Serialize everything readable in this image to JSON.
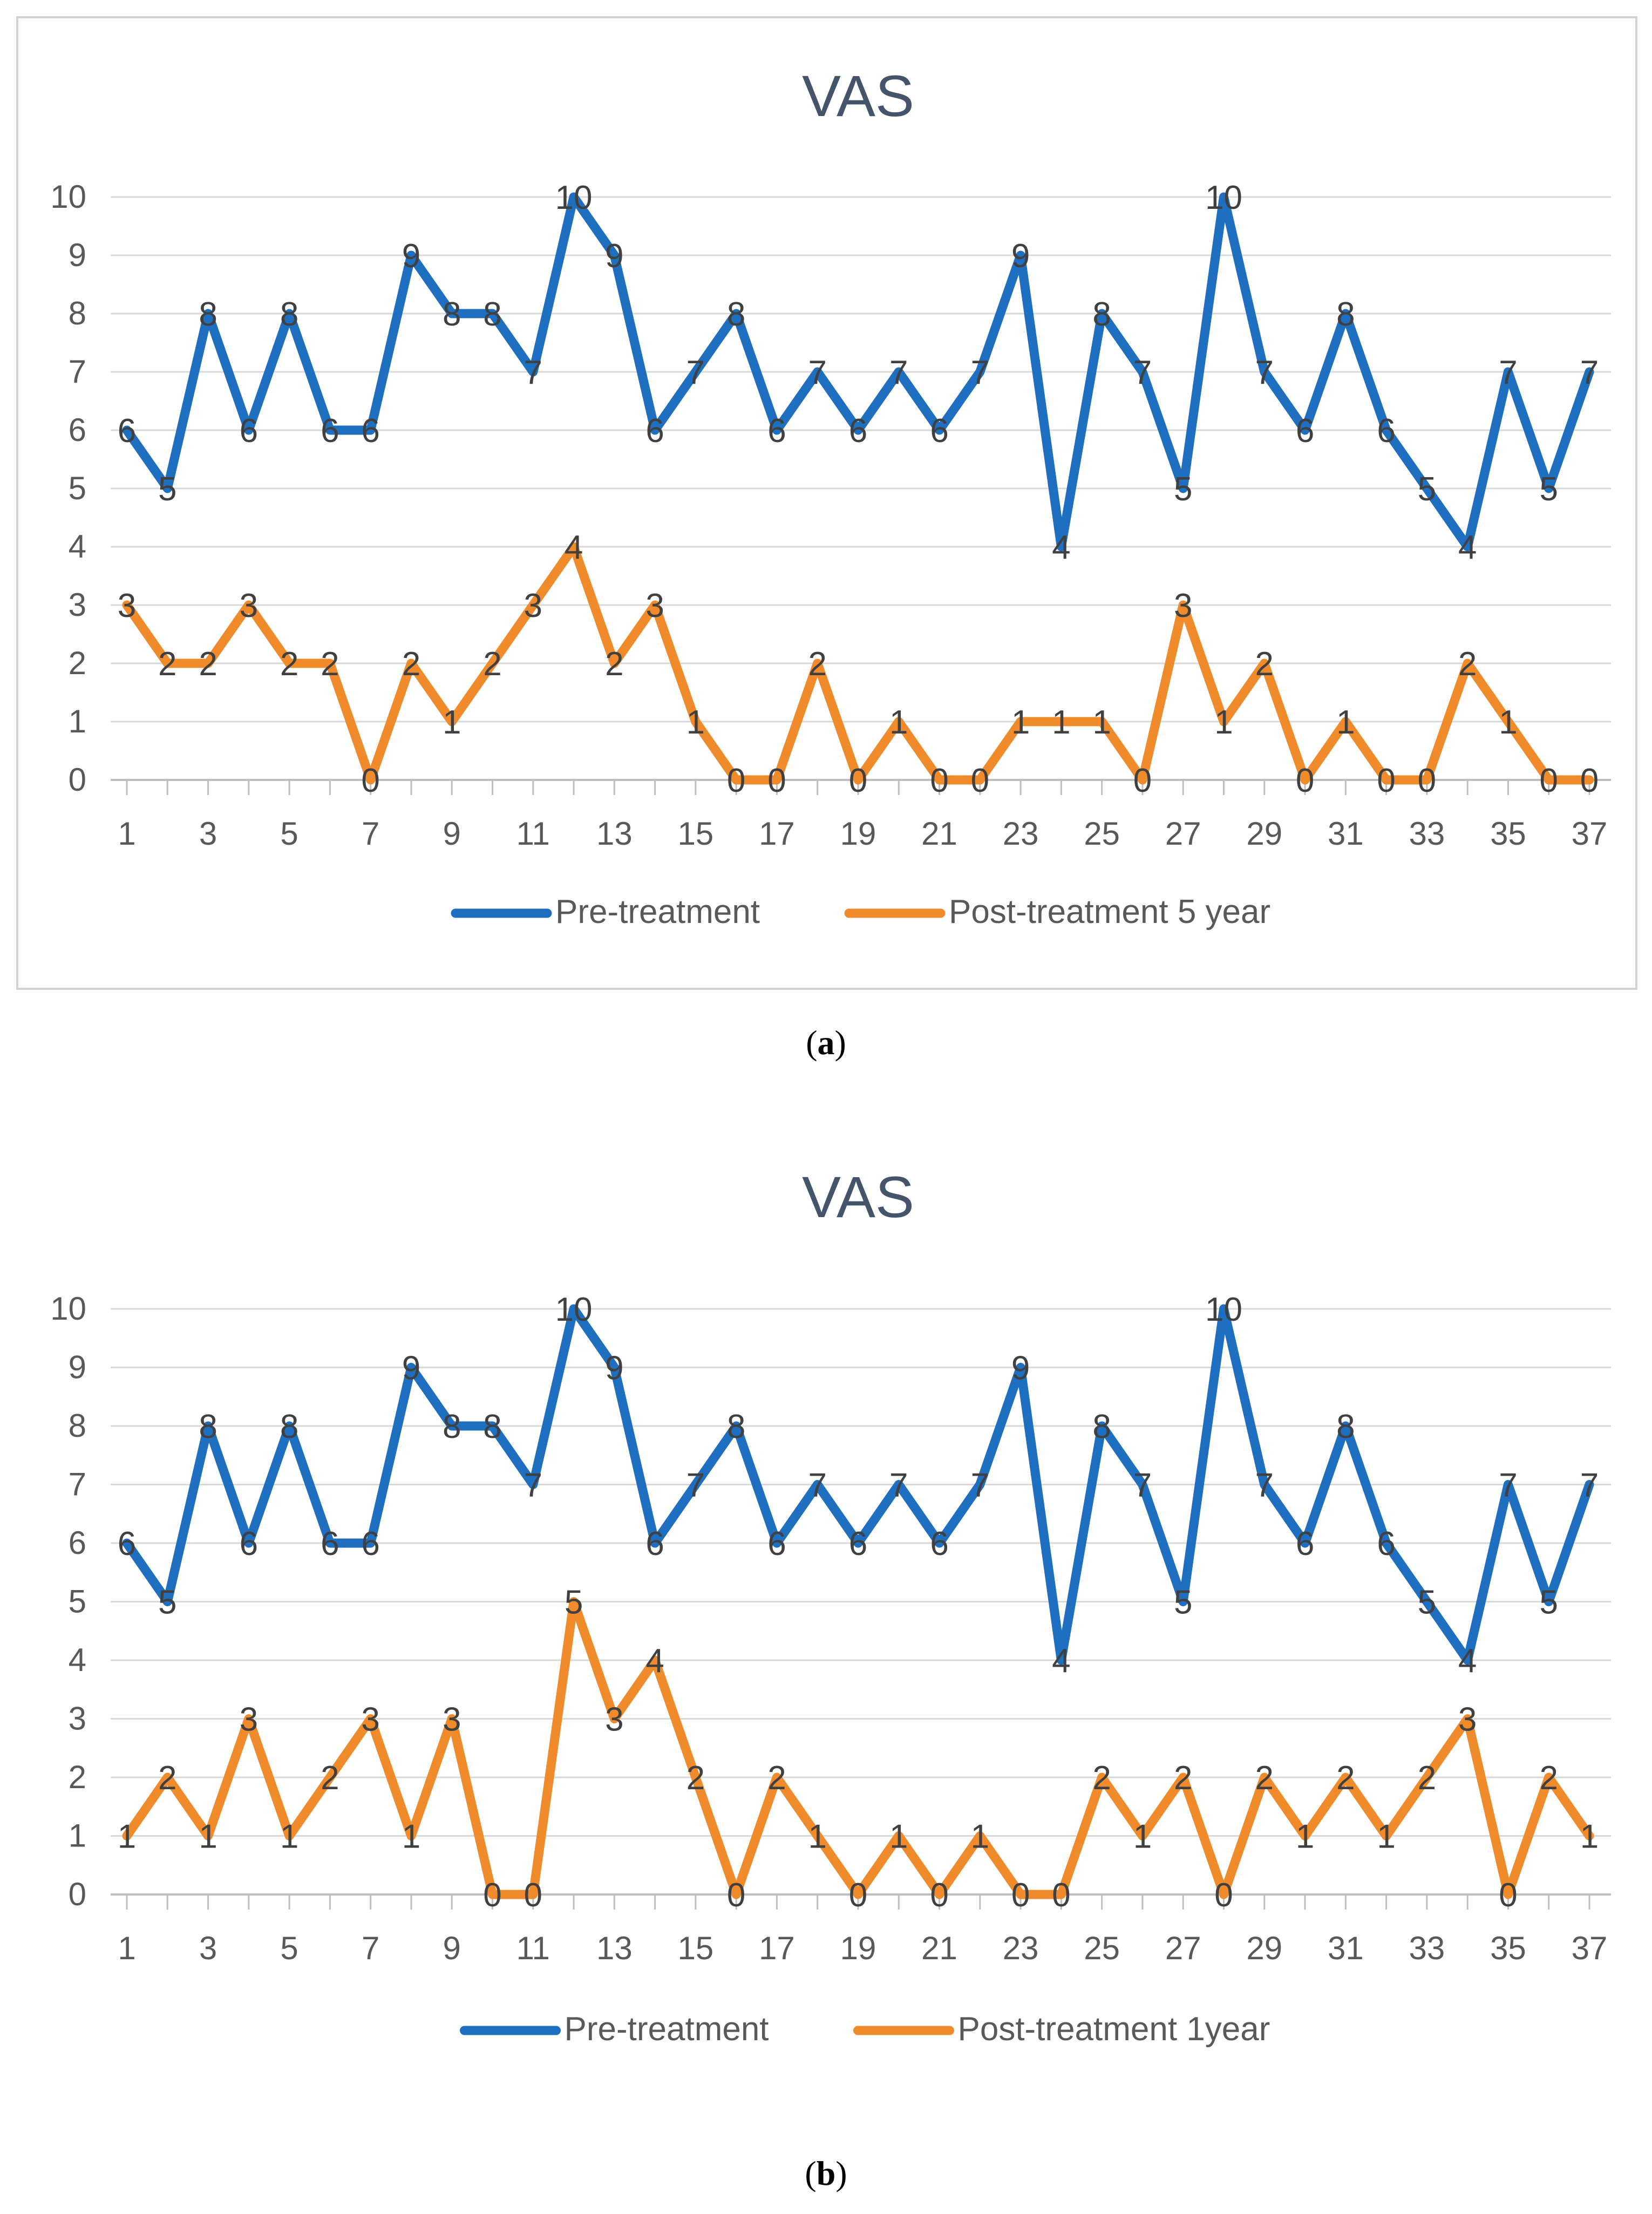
{
  "chart_data": [
    {
      "type": "line",
      "title": "VAS",
      "caption_letter": "a",
      "x": [
        1,
        2,
        3,
        4,
        5,
        6,
        7,
        8,
        9,
        10,
        11,
        12,
        13,
        14,
        15,
        16,
        17,
        18,
        19,
        20,
        21,
        22,
        23,
        24,
        25,
        26,
        27,
        28,
        29,
        30,
        31,
        32,
        33,
        34,
        35,
        36,
        37
      ],
      "x_tick_labels": [
        "1",
        "3",
        "5",
        "7",
        "9",
        "11",
        "13",
        "15",
        "17",
        "19",
        "21",
        "23",
        "25",
        "27",
        "29",
        "31",
        "33",
        "35",
        "37"
      ],
      "ylim": [
        0,
        10
      ],
      "y_tick_labels": [
        "0",
        "1",
        "2",
        "3",
        "4",
        "5",
        "6",
        "7",
        "8",
        "9",
        "10"
      ],
      "grid": true,
      "bordered": true,
      "legend_position": "bottom",
      "series": [
        {
          "name": "Pre-treatment",
          "color": "#1f6fc1",
          "values": [
            6,
            5,
            8,
            6,
            8,
            6,
            6,
            9,
            8,
            8,
            7,
            10,
            9,
            6,
            7,
            8,
            6,
            7,
            6,
            7,
            6,
            7,
            9,
            4,
            8,
            7,
            5,
            10,
            7,
            6,
            8,
            6,
            5,
            4,
            7,
            5,
            7
          ]
        },
        {
          "name": "Post-treatment 5 year",
          "color": "#f08b2c",
          "values": [
            3,
            2,
            2,
            3,
            2,
            2,
            0,
            2,
            1,
            2,
            3,
            4,
            2,
            3,
            1,
            0,
            0,
            2,
            0,
            1,
            0,
            0,
            1,
            1,
            1,
            0,
            3,
            1,
            2,
            0,
            1,
            0,
            0,
            2,
            1,
            0,
            0
          ]
        }
      ]
    },
    {
      "type": "line",
      "title": "VAS",
      "caption_letter": "b",
      "x": [
        1,
        2,
        3,
        4,
        5,
        6,
        7,
        8,
        9,
        10,
        11,
        12,
        13,
        14,
        15,
        16,
        17,
        18,
        19,
        20,
        21,
        22,
        23,
        24,
        25,
        26,
        27,
        28,
        29,
        30,
        31,
        32,
        33,
        34,
        35,
        36,
        37
      ],
      "x_tick_labels": [
        "1",
        "3",
        "5",
        "7",
        "9",
        "11",
        "13",
        "15",
        "17",
        "19",
        "21",
        "23",
        "25",
        "27",
        "29",
        "31",
        "33",
        "35",
        "37"
      ],
      "ylim": [
        0,
        10
      ],
      "y_tick_labels": [
        "0",
        "1",
        "2",
        "3",
        "4",
        "5",
        "6",
        "7",
        "8",
        "9",
        "10"
      ],
      "grid": true,
      "bordered": false,
      "legend_position": "bottom",
      "series": [
        {
          "name": "Pre-treatment",
          "color": "#1f6fc1",
          "values": [
            6,
            5,
            8,
            6,
            8,
            6,
            6,
            9,
            8,
            8,
            7,
            10,
            9,
            6,
            7,
            8,
            6,
            7,
            6,
            7,
            6,
            7,
            9,
            4,
            8,
            7,
            5,
            10,
            7,
            6,
            8,
            6,
            5,
            4,
            7,
            5,
            7
          ]
        },
        {
          "name": "Post-treatment 1year",
          "color": "#f08b2c",
          "values": [
            1,
            2,
            1,
            3,
            1,
            2,
            3,
            1,
            3,
            0,
            0,
            5,
            3,
            4,
            2,
            0,
            2,
            1,
            0,
            1,
            0,
            1,
            0,
            0,
            2,
            1,
            2,
            0,
            2,
            1,
            2,
            1,
            2,
            3,
            0,
            2,
            1
          ]
        }
      ]
    }
  ]
}
